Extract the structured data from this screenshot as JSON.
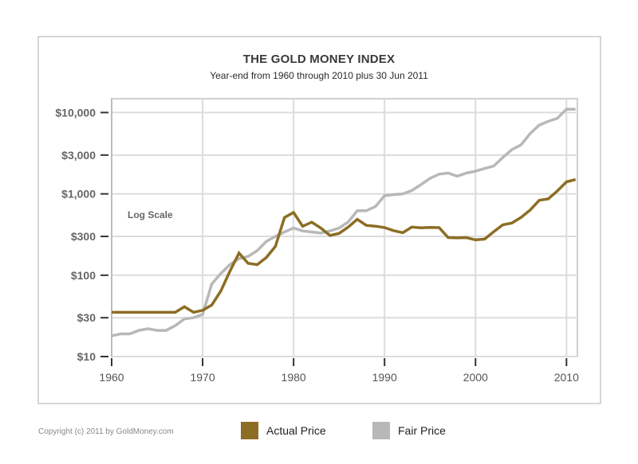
{
  "chart_data": {
    "type": "line",
    "title": "THE GOLD MONEY INDEX",
    "subtitle": "Year-end from 1960 through 2010 plus 30 Jun 2011",
    "annotation": "Log Scale",
    "xlabel": "",
    "ylabel": "",
    "yscale": "log",
    "ylim": [
      10,
      12000
    ],
    "xlim": [
      1960,
      2011.5
    ],
    "grid": true,
    "yticks": [
      10,
      30,
      100,
      300,
      1000,
      3000,
      10000
    ],
    "ytick_labels": [
      "$10",
      "$30",
      "$100",
      "$300",
      "$1,000",
      "$3,000",
      "$10,000"
    ],
    "xticks": [
      1960,
      1970,
      1980,
      1990,
      2000,
      2010
    ],
    "xtick_labels": [
      "1960",
      "1970",
      "1980",
      "1990",
      "2000",
      "2010"
    ],
    "x": [
      1960,
      1961,
      1962,
      1963,
      1964,
      1965,
      1966,
      1967,
      1968,
      1969,
      1970,
      1971,
      1972,
      1973,
      1974,
      1975,
      1976,
      1977,
      1978,
      1979,
      1980,
      1981,
      1982,
      1983,
      1984,
      1985,
      1986,
      1987,
      1988,
      1989,
      1990,
      1991,
      1992,
      1993,
      1994,
      1995,
      1996,
      1997,
      1998,
      1999,
      2000,
      2001,
      2002,
      2003,
      2004,
      2005,
      2006,
      2007,
      2008,
      2009,
      2010,
      2011
    ],
    "series": [
      {
        "name": "Actual Price",
        "color": "#8c6d23",
        "values": [
          35,
          35,
          35,
          35,
          35,
          35,
          35,
          35,
          41,
          35,
          37,
          43,
          64,
          112,
          187,
          140,
          135,
          165,
          226,
          512,
          590,
          400,
          448,
          380,
          308,
          327,
          391,
          486,
          410,
          401,
          386,
          353,
          333,
          391,
          383,
          387,
          385,
          290,
          288,
          290,
          272,
          278,
          343,
          416,
          438,
          513,
          632,
          834,
          869,
          1087,
          1405,
          1500
        ]
      },
      {
        "name": "Fair Price",
        "color": "#b8b8b8",
        "values": [
          18,
          19,
          19,
          21,
          22,
          21,
          21,
          24,
          29,
          30,
          33,
          78,
          105,
          135,
          160,
          170,
          200,
          260,
          300,
          340,
          380,
          350,
          340,
          330,
          350,
          380,
          450,
          620,
          620,
          700,
          950,
          980,
          1000,
          1100,
          1300,
          1550,
          1750,
          1800,
          1650,
          1800,
          1900,
          2050,
          2200,
          2800,
          3500,
          4000,
          5500,
          7000,
          7800,
          8500,
          11000,
          11000
        ]
      }
    ],
    "legend": {
      "position": "bottom",
      "items": [
        "Actual Price",
        "Fair Price"
      ]
    }
  },
  "footer": {
    "copyright": "Copyright (c) 2011 by GoldMoney.com"
  }
}
